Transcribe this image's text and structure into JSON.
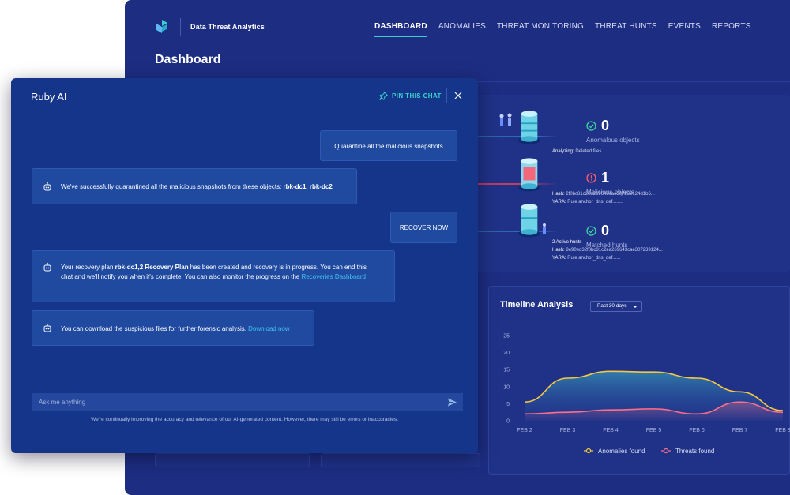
{
  "app": {
    "name": "Data Threat Analytics"
  },
  "nav": {
    "items": [
      "DASHBOARD",
      "ANOMALIES",
      "THREAT MONITORING",
      "THREAT HUNTS",
      "EVENTS",
      "REPORTS"
    ],
    "active": "DASHBOARD"
  },
  "page": {
    "title": "Dashboard"
  },
  "hunts": {
    "row1": {
      "label": "Analyzing:",
      "value": "Deleted files"
    },
    "row2": {
      "hash_label": "Hash:",
      "hash": "2f0bc81c2ea269643cae307239124d1b6...",
      "yara_label": "YARA:",
      "yara": "Rule anchor_dns_def........"
    },
    "row3": {
      "status": "2 Active hunts",
      "hash_label": "Hash:",
      "hash": "8e90ed32f0bc81c2ea269643cae307239124...",
      "yara_label": "YARA:",
      "yara": "Rule anchor_dns_def......"
    }
  },
  "stats": [
    {
      "value": "0",
      "label": "Anomalous objects",
      "status": "ok",
      "color": "#3fd0a4"
    },
    {
      "value": "1",
      "label": "Malicious objects",
      "status": "alert",
      "color": "#ff5a6e"
    },
    {
      "value": "0",
      "label": "Matched hunts",
      "status": "ok",
      "color": "#3fd0a4"
    }
  ],
  "timeline": {
    "title": "Timeline Analysis",
    "range": "Past 30 days"
  },
  "chart_data": {
    "type": "area",
    "title": "Timeline Analysis",
    "categories": [
      "FEB 2",
      "FEB 3",
      "FEB 4",
      "FEB 5",
      "FEB 6",
      "FEB 7",
      "FEB 8"
    ],
    "ylim": [
      0,
      25
    ],
    "yticks": [
      0,
      5,
      10,
      15,
      20,
      25
    ],
    "series": [
      {
        "name": "Anomalies found",
        "color": "#f5c842",
        "values": [
          5.5,
          12.5,
          14.5,
          14.3,
          12.5,
          8.5,
          3.0
        ]
      },
      {
        "name": "Threats found",
        "color": "#ff6e8a",
        "values": [
          2.0,
          2.5,
          3.2,
          3.5,
          2.0,
          5.5,
          2.5
        ]
      }
    ],
    "grid": false,
    "legend": "bottom"
  },
  "chat": {
    "title": "Ruby AI",
    "pin_label": "PIN THIS CHAT",
    "messages": [
      {
        "role": "user",
        "text": "Quarantine all the malicious snapshots"
      },
      {
        "role": "ai",
        "prefix": "We've successfully quarantined all the malicious snapshots from these objects: ",
        "bold": "rbk-dc1, rbk-dc2"
      },
      {
        "role": "user",
        "text": "RECOVER NOW"
      },
      {
        "role": "ai",
        "pre": "Your recovery plan ",
        "bold": "rbk-dc1,2 Recovery Plan",
        "mid": " has been created and recovery is in progress. You can end this chat and we'll notify you when it's complete.  You can also monitor the progress on the ",
        "link": "Recoveries Dashboard"
      },
      {
        "role": "ai",
        "pre": "You can download the suspicious files for further forensic analysis. ",
        "link": "Download now"
      }
    ],
    "input_placeholder": "Ask me anything",
    "disclaimer": "We're continually improving the accuracy and relevance of our AI-generated content. However, there may still be errors or inaccuracies."
  },
  "colors": {
    "accent": "#38d3cf",
    "background": "#1d2d82",
    "chat_bg": "#15358a"
  }
}
